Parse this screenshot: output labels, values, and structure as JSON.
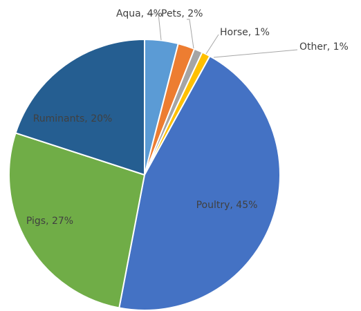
{
  "chart_data": {
    "type": "pie",
    "values": [
      4,
      2,
      1,
      1,
      45,
      27,
      20
    ],
    "value_labels": [
      "Aqua, 4%",
      "Pets, 2%",
      "Horse, 1%",
      "Other, 1%",
      "Poultry, 45%",
      "Pigs, 27%",
      "Ruminants, 20%"
    ],
    "colors": [
      "#5b9bd5",
      "#ed7d31",
      "#a5a5a5",
      "#ffc000",
      "#4472c4",
      "#70ad47",
      "#255e91"
    ]
  }
}
